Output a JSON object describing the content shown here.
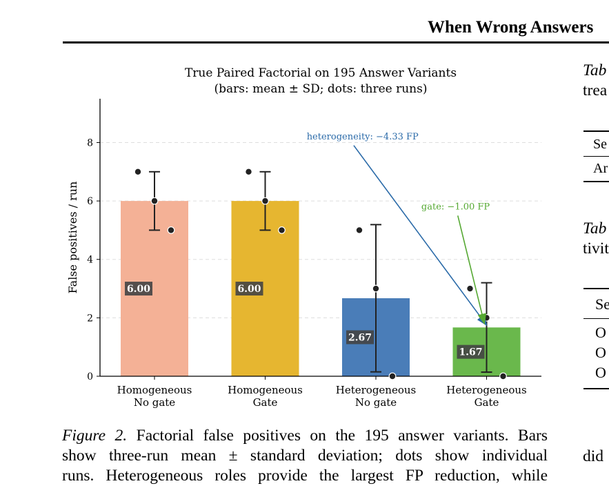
{
  "header": {
    "running_title": "When Wrong Answers"
  },
  "chart_data": {
    "type": "bar",
    "title": "True Paired Factorial on 195 Answer Variants",
    "subtitle": "(bars: mean ± SD; dots: three runs)",
    "xlabel": "",
    "ylabel": "False positives / run",
    "ylim": [
      0,
      9.5
    ],
    "yticks": [
      0,
      2,
      4,
      6,
      8
    ],
    "grid": true,
    "categories": [
      [
        "Homogeneous",
        "No gate"
      ],
      [
        "Homogeneous",
        "Gate"
      ],
      [
        "Heterogeneous",
        "No gate"
      ],
      [
        "Heterogeneous",
        "Gate"
      ]
    ],
    "values": [
      6.0,
      6.0,
      2.67,
      1.67
    ],
    "value_labels": [
      "6.00",
      "6.00",
      "2.67",
      "1.67"
    ],
    "sd": [
      1.0,
      1.0,
      2.52,
      1.53
    ],
    "runs": [
      [
        7,
        6,
        5
      ],
      [
        7,
        6,
        5
      ],
      [
        5,
        3,
        0
      ],
      [
        3,
        2,
        0
      ]
    ],
    "colors": [
      "#f4b196",
      "#e6b630",
      "#4a7db8",
      "#6ab84c"
    ],
    "annotations": [
      {
        "text": "heterogeneity: −4.33 FP",
        "color": "#2a6aa8",
        "label_at": [
          1.88,
          8.2
        ],
        "arrow_from": [
          1.8,
          7.9
        ],
        "arrow_to": [
          3.0,
          1.75
        ]
      },
      {
        "text": "gate: −1.00 FP",
        "color": "#55a832",
        "label_at": [
          2.72,
          5.8
        ],
        "arrow_from": [
          2.74,
          5.5
        ],
        "arrow_to": [
          2.98,
          1.8
        ]
      }
    ]
  },
  "caption": {
    "label": "Figure 2.",
    "line1": "Factorial false positives on the 195 answer variants. Bars",
    "line2": "show three-run mean ± standard deviation; dots show individual",
    "line3": "runs. Heterogeneous roles provide the largest FP reduction, while"
  },
  "right_column": {
    "tab1_label": "Tab",
    "tab1_line2": "trea",
    "tab1_row1": "Se",
    "tab1_row2": "Ar",
    "tab2_label": "Tab",
    "tab2_line2": "tivit",
    "tab2_row1": "Se",
    "tab2_rows": [
      "O",
      "O",
      "O"
    ],
    "bottom_text": "did"
  }
}
